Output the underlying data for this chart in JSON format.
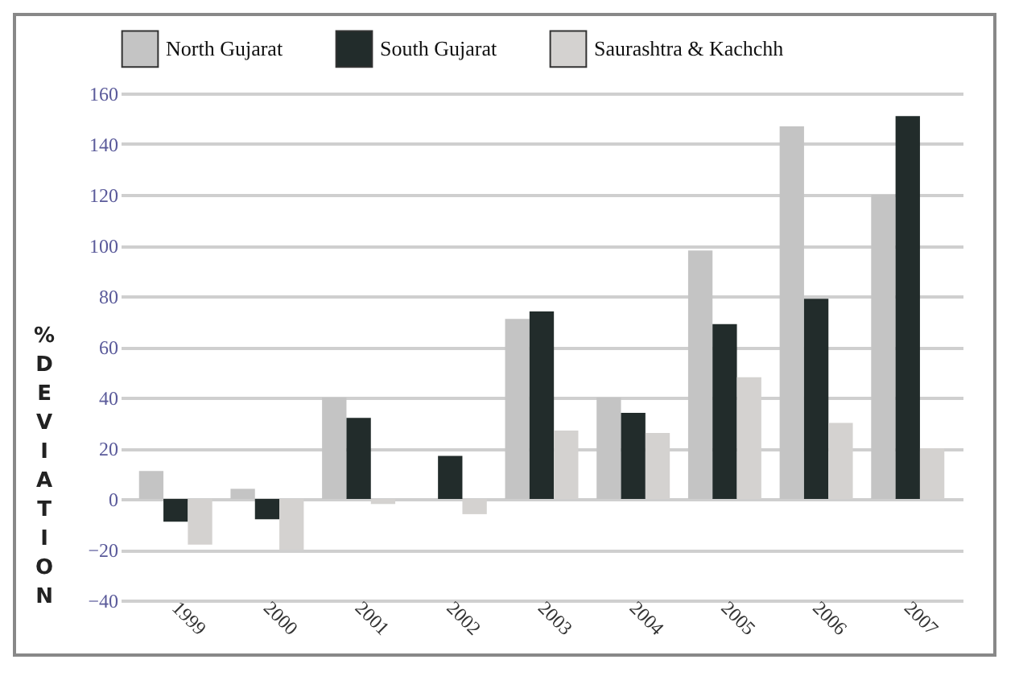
{
  "chart_data": {
    "type": "bar",
    "ylabel": "% DEVIATION",
    "categories": [
      "1999",
      "2000",
      "2001",
      "2002",
      "2003",
      "2004",
      "2005",
      "2006",
      "2007"
    ],
    "series": [
      {
        "name": "North Gujarat",
        "color": "#c4c4c4",
        "values": [
          11,
          4,
          40,
          0,
          71,
          40,
          98,
          147,
          120
        ]
      },
      {
        "name": "South Gujarat",
        "color": "#222c2b",
        "values": [
          -9,
          -8,
          32,
          17,
          74,
          34,
          69,
          79,
          151
        ]
      },
      {
        "name": "Saurashtra & Kachchh",
        "color": "#d4d2d0",
        "values": [
          -18,
          -20,
          -2,
          -6,
          27,
          26,
          48,
          30,
          20
        ]
      }
    ],
    "ylim": [
      -40,
      160
    ],
    "yticks": [
      -40,
      -20,
      0,
      20,
      40,
      60,
      80,
      100,
      120,
      140,
      160
    ],
    "grid": "y",
    "legend": "top"
  }
}
